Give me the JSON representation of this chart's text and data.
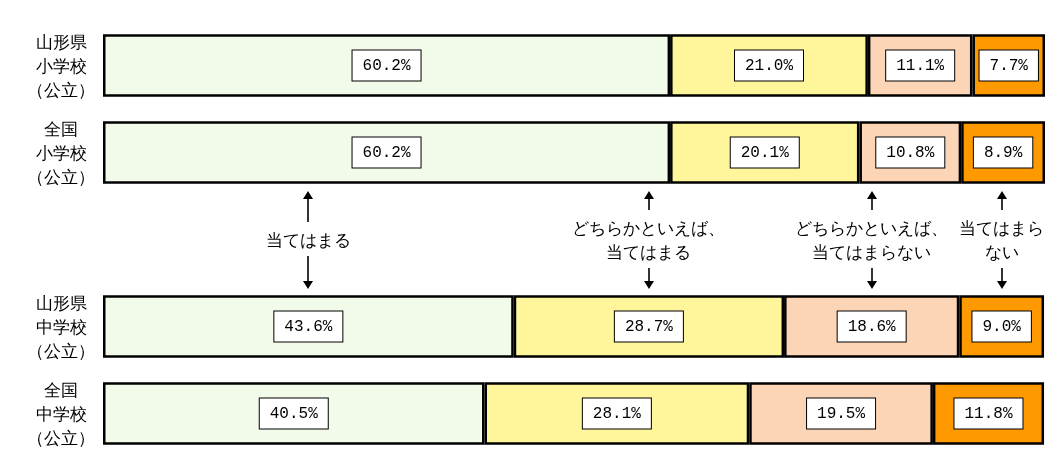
{
  "chart_data": {
    "type": "bar",
    "orientation": "horizontal",
    "stacked": true,
    "categories": [
      "山形県小学校（公立）",
      "全国小学校（公立）",
      null,
      "山形県中学校（公立）",
      "全国中学校（公立）"
    ],
    "series": [
      {
        "name": "当てはまる",
        "color": "#f2fbe9",
        "values": [
          60.2,
          60.2,
          null,
          43.6,
          40.5
        ],
        "value_labels": [
          "60.2%",
          "60.2%",
          null,
          "43.6%",
          "40.5%"
        ]
      },
      {
        "name": "どちらかといえば、当てはまる",
        "color": "#fff59b",
        "values": [
          21.0,
          20.1,
          null,
          28.7,
          28.1
        ],
        "value_labels": [
          "21.0%",
          "20.1%",
          null,
          "28.7%",
          "28.1%"
        ]
      },
      {
        "name": "どちらかといえば、当てはまらない",
        "color": "#fcd5b7",
        "values": [
          11.1,
          10.8,
          null,
          18.6,
          19.5
        ],
        "value_labels": [
          "11.1%",
          "10.8%",
          null,
          "18.6%",
          "19.5%"
        ]
      },
      {
        "name": "当てはまらない",
        "color": "#ff9900",
        "values": [
          7.7,
          8.9,
          null,
          9.0,
          11.8
        ],
        "value_labels": [
          "7.7%",
          "8.9%",
          null,
          "9.0%",
          "11.8%"
        ]
      }
    ],
    "legend": "center",
    "grid": false
  }
}
